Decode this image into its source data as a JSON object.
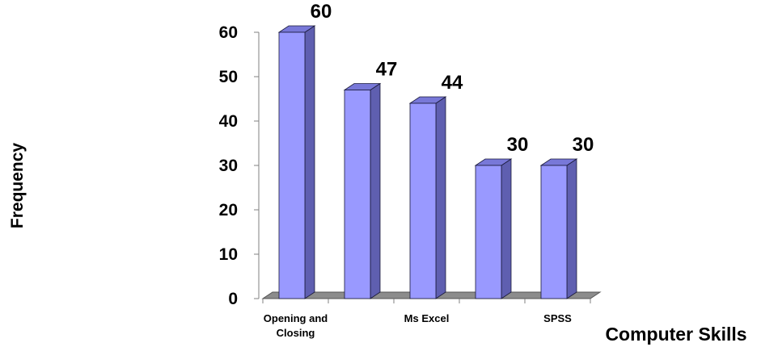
{
  "chart_data": {
    "type": "bar",
    "categories": [
      "Opening and Closing",
      "",
      "Ms Excel",
      "",
      "SPSS"
    ],
    "category_label_lines": [
      [
        "Opening and",
        "Closing"
      ],
      [],
      [
        "Ms Excel"
      ],
      [],
      [
        "SPSS"
      ]
    ],
    "values": [
      60,
      47,
      44,
      30,
      30
    ],
    "data_labels": [
      "60",
      "47",
      "44",
      "30",
      "30"
    ],
    "title": "",
    "xlabel": "Computer Skills",
    "ylabel": "Frequency",
    "ylim": [
      0,
      60
    ],
    "yticks": [
      "0",
      "10",
      "20",
      "30",
      "40",
      "50",
      "60"
    ],
    "grid": false,
    "legend": "none",
    "style": "3d-column",
    "colors": {
      "bar_front": "#9999ff",
      "bar_side": "#5f5fb0",
      "bar_top": "#7878d8",
      "bar_stroke": "#1a1a3a",
      "floor": "#8c8c8c"
    }
  }
}
